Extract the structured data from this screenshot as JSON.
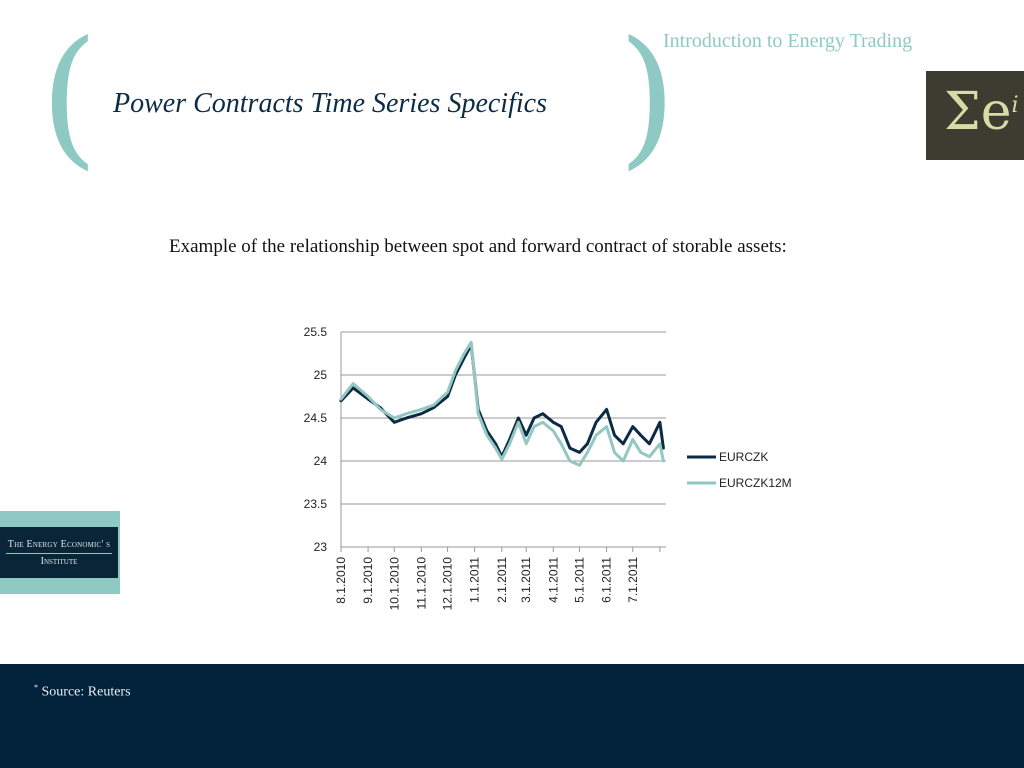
{
  "header": {
    "deck_title": "Introduction to Energy Trading",
    "slide_title": "Power Contracts Time Series Specifics",
    "paren_left": "(",
    "paren_right": ")"
  },
  "logo": {
    "text": "Σe",
    "superscript": "i"
  },
  "intro": {
    "text": "Example of the relationship between spot and forward contract of storable assets:"
  },
  "institute_badge": {
    "line1": "The Energy Economic' s",
    "line2": "Institute"
  },
  "footer": {
    "marker": "*",
    "source": "Source: Reuters"
  },
  "colors": {
    "accent": "#8ecac3",
    "navy": "#0c2b45",
    "footer_bg": "#02213a",
    "logo_bg": "#3c3c30",
    "spot_series": "#0d2a45",
    "forward_series": "#93c7c2"
  },
  "chart_data": {
    "type": "line",
    "title": "",
    "xlabel": "",
    "ylabel": "",
    "ylim": [
      23,
      25.5
    ],
    "yticks": [
      "23",
      "23.5",
      "24",
      "24.5",
      "25",
      "25.5"
    ],
    "xtick_labels": [
      "8.1.2010",
      "9.1.2010",
      "10.1.2010",
      "11.1.2010",
      "12.1.2010",
      "1.1.2011",
      "2.1.2011",
      "3.1.2011",
      "4.1.2011",
      "5.1.2011",
      "6.1.2011",
      "7.1.2011"
    ],
    "grid": "horizontal",
    "legend_position": "right",
    "x": [
      "2010-08-01",
      "2010-08-15",
      "2010-09-01",
      "2010-09-15",
      "2010-10-01",
      "2010-10-15",
      "2010-11-01",
      "2010-11-15",
      "2010-12-01",
      "2010-12-10",
      "2010-12-20",
      "2010-12-28",
      "2011-01-05",
      "2011-01-15",
      "2011-01-25",
      "2011-02-01",
      "2011-02-10",
      "2011-02-20",
      "2011-03-01",
      "2011-03-10",
      "2011-03-20",
      "2011-04-01",
      "2011-04-10",
      "2011-04-20",
      "2011-05-01",
      "2011-05-10",
      "2011-05-20",
      "2011-06-01",
      "2011-06-10",
      "2011-06-20",
      "2011-07-01",
      "2011-07-10",
      "2011-07-20",
      "2011-08-01",
      "2011-08-05"
    ],
    "series": [
      {
        "name": "EURCZK",
        "values": [
          24.7,
          24.85,
          24.72,
          24.62,
          24.45,
          24.5,
          24.55,
          24.62,
          24.75,
          25.0,
          25.2,
          25.35,
          24.6,
          24.35,
          24.2,
          24.05,
          24.25,
          24.5,
          24.3,
          24.5,
          24.55,
          24.45,
          24.4,
          24.15,
          24.1,
          24.2,
          24.45,
          24.6,
          24.3,
          24.2,
          24.4,
          24.3,
          24.2,
          24.45,
          24.15
        ]
      },
      {
        "name": "EURCZK12M",
        "values": [
          24.72,
          24.9,
          24.75,
          24.6,
          24.5,
          24.55,
          24.6,
          24.65,
          24.8,
          25.05,
          25.25,
          25.38,
          24.55,
          24.3,
          24.15,
          24.02,
          24.2,
          24.45,
          24.2,
          24.4,
          24.45,
          24.35,
          24.2,
          24.0,
          23.95,
          24.1,
          24.3,
          24.4,
          24.1,
          24.0,
          24.25,
          24.1,
          24.05,
          24.2,
          24.0
        ]
      }
    ]
  }
}
